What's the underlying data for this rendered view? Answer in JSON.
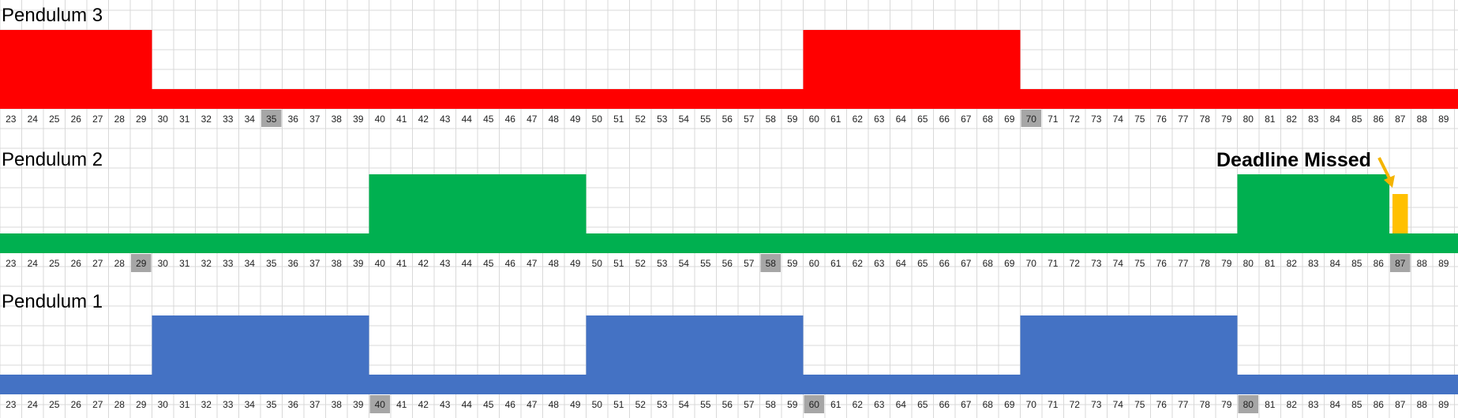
{
  "chart_data": [
    {
      "type": "timeline",
      "title": "Pendulum 3",
      "x_range": [
        23,
        89
      ],
      "baseline_color": "#ff0000",
      "fill_color": "#ff0000",
      "active_intervals": [
        [
          0,
          29
        ],
        [
          60,
          69
        ]
      ],
      "highlighted_ticks": [
        35,
        70
      ]
    },
    {
      "type": "timeline",
      "title": "Pendulum 2",
      "x_range": [
        23,
        89
      ],
      "baseline_color": "#00b050",
      "fill_color": "#00b050",
      "active_intervals": [
        [
          40,
          49
        ],
        [
          80,
          86
        ]
      ],
      "highlighted_ticks": [
        29,
        58,
        87
      ],
      "overrun_interval": [
        87,
        87
      ],
      "overrun_color": "#ffc000",
      "annotation": "Deadline Missed"
    },
    {
      "type": "timeline",
      "title": "Pendulum 1",
      "x_range": [
        23,
        89
      ],
      "baseline_color": "#4472c4",
      "fill_color": "#4472c4",
      "active_intervals": [
        [
          30,
          39
        ],
        [
          50,
          59
        ],
        [
          70,
          79
        ]
      ],
      "highlighted_ticks": [
        40,
        60,
        80
      ]
    }
  ],
  "colors": {
    "grid": "#d9d9d9",
    "highlight_tick_bg": "#a6a6a6",
    "arrow": "#f4b400"
  }
}
